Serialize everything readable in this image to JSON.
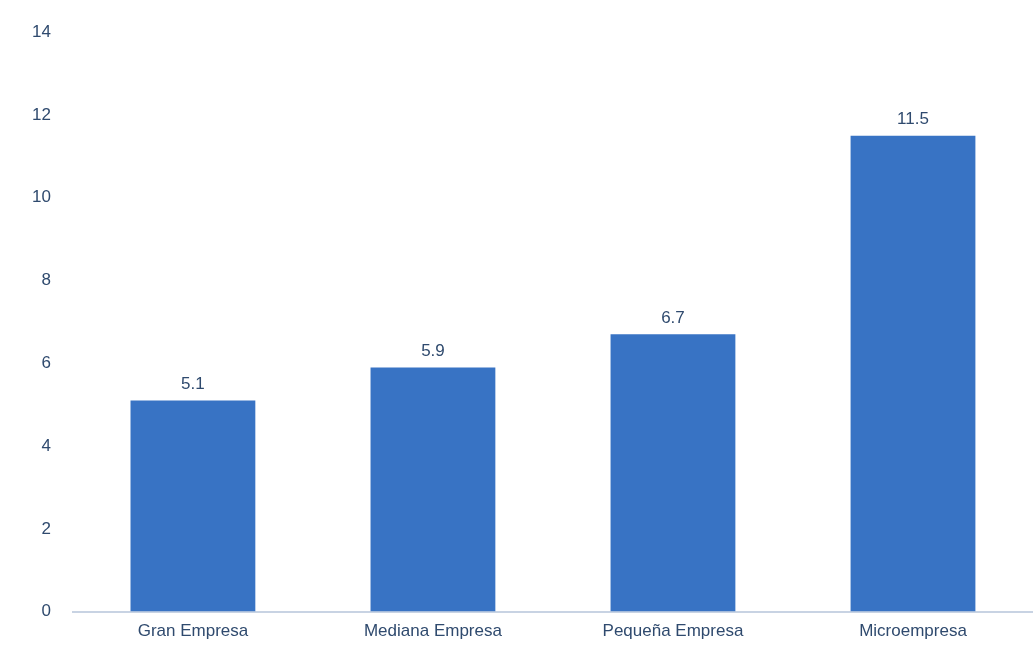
{
  "chart_data": {
    "type": "bar",
    "categories": [
      "Gran Empresa",
      "Mediana Empresa",
      "Pequeña Empresa",
      "Microempresa"
    ],
    "values": [
      5.1,
      5.9,
      6.7,
      11.5
    ],
    "color": "#3873c4",
    "ylim": [
      0,
      14
    ],
    "yticks": [
      0,
      2,
      4,
      6,
      8,
      10,
      12,
      14
    ],
    "grid": false,
    "data_labels": true
  }
}
